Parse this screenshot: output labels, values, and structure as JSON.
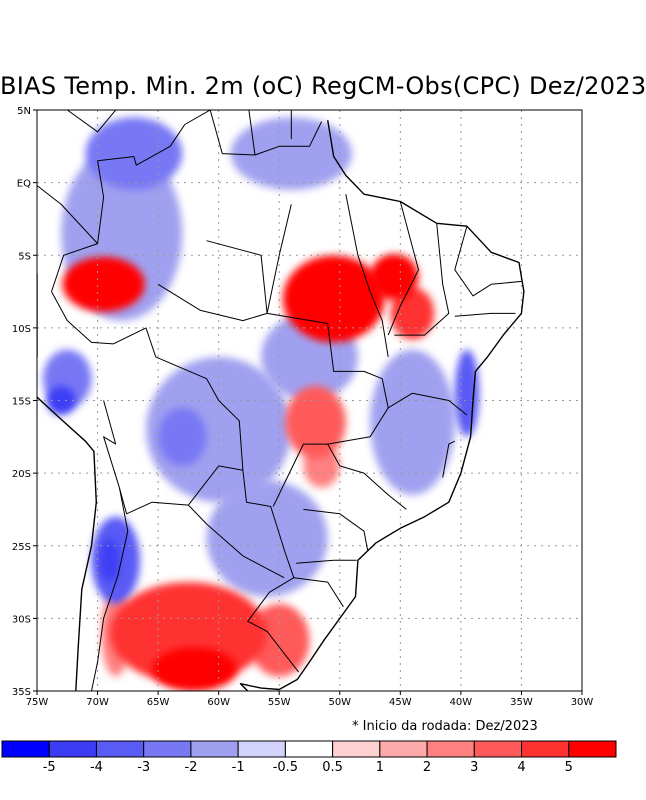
{
  "title": "BIAS Temp. Min. 2m (oC) RegCM-Obs(CPC) Dez/2023",
  "footnote": "* Inicio da rodada: Dez/2023",
  "map": {
    "lon_range": [
      -75,
      -30
    ],
    "lat_range": [
      -35,
      5
    ],
    "lon_ticks": [
      {
        "v": -75,
        "label": "75W"
      },
      {
        "v": -70,
        "label": "70W"
      },
      {
        "v": -65,
        "label": "65W"
      },
      {
        "v": -60,
        "label": "60W"
      },
      {
        "v": -55,
        "label": "55W"
      },
      {
        "v": -50,
        "label": "50W"
      },
      {
        "v": -45,
        "label": "45W"
      },
      {
        "v": -40,
        "label": "40W"
      },
      {
        "v": -35,
        "label": "35W"
      },
      {
        "v": -30,
        "label": "30W"
      }
    ],
    "lat_ticks": [
      {
        "v": 5,
        "label": "5N"
      },
      {
        "v": 0,
        "label": "EQ"
      },
      {
        "v": -5,
        "label": "5S"
      },
      {
        "v": -10,
        "label": "10S"
      },
      {
        "v": -15,
        "label": "15S"
      },
      {
        "v": -20,
        "label": "20S"
      },
      {
        "v": -25,
        "label": "25S"
      },
      {
        "v": -30,
        "label": "30S"
      },
      {
        "v": -35,
        "label": "35S"
      }
    ]
  },
  "colorbar": {
    "colors": [
      "#0000ff",
      "#3c3cf5",
      "#5a5af5",
      "#7878f5",
      "#a0a0f0",
      "#d2d2fa",
      "#ffffff",
      "#ffd2d2",
      "#ffaaaa",
      "#ff8080",
      "#ff5a5a",
      "#ff3232",
      "#ff0000"
    ],
    "labels": [
      "-5",
      "-4",
      "-3",
      "-2",
      "-1",
      "-0.5",
      "0.5",
      "1",
      "2",
      "3",
      "4",
      "5"
    ]
  },
  "chart_data": {
    "type": "heatmap",
    "title": "BIAS Temp. Min. 2m (oC) RegCM-Obs(CPC) Dez/2023",
    "variable": "BIAS Temp. Min. 2m (oC)",
    "xlim": [
      -75,
      -30
    ],
    "ylim": [
      -35,
      5
    ],
    "levels": [
      -5,
      -4,
      -3,
      -2,
      -1,
      -0.5,
      0.5,
      1,
      2,
      3,
      4,
      5
    ],
    "features": [
      {
        "lon": -69.5,
        "lat": -7.0,
        "rx": 3.4,
        "ry": 1.9,
        "value": 6
      },
      {
        "lon": -50.5,
        "lat": -8.0,
        "rx": 4.2,
        "ry": 3.0,
        "value": 6
      },
      {
        "lon": -45.5,
        "lat": -6.5,
        "rx": 2.0,
        "ry": 1.6,
        "value": 6
      },
      {
        "lon": -44.0,
        "lat": -9.0,
        "rx": 1.8,
        "ry": 1.8,
        "value": 4
      },
      {
        "lon": -52.0,
        "lat": -16.5,
        "rx": 2.5,
        "ry": 2.5,
        "value": 3
      },
      {
        "lon": -51.5,
        "lat": -19.5,
        "rx": 1.5,
        "ry": 1.5,
        "value": 2
      },
      {
        "lon": -62.5,
        "lat": -31.0,
        "rx": 6.5,
        "ry": 3.5,
        "value": 4
      },
      {
        "lon": -62.0,
        "lat": -33.5,
        "rx": 3.5,
        "ry": 1.5,
        "value": 5
      },
      {
        "lon": -55.0,
        "lat": -31.5,
        "rx": 2.5,
        "ry": 2.5,
        "value": 3
      },
      {
        "lon": -68.5,
        "lat": -31.0,
        "rx": 1.2,
        "ry": 3.0,
        "value": 2
      },
      {
        "lon": -68.0,
        "lat": -3.5,
        "rx": 5.0,
        "ry": 6.0,
        "value": -1.5
      },
      {
        "lon": -67.0,
        "lat": 2.0,
        "rx": 4.0,
        "ry": 2.5,
        "value": -2.5
      },
      {
        "lon": -54.0,
        "lat": 2.0,
        "rx": 5.0,
        "ry": 2.5,
        "value": -2
      },
      {
        "lon": -72.5,
        "lat": -13.5,
        "rx": 2.0,
        "ry": 2.0,
        "value": -2.5
      },
      {
        "lon": -73.0,
        "lat": -15.0,
        "rx": 1.2,
        "ry": 1.0,
        "value": -5
      },
      {
        "lon": -60.0,
        "lat": -17.0,
        "rx": 6.0,
        "ry": 5.0,
        "value": -1.5
      },
      {
        "lon": -63.0,
        "lat": -17.5,
        "rx": 2.0,
        "ry": 2.0,
        "value": -3
      },
      {
        "lon": -52.5,
        "lat": -12.0,
        "rx": 4.0,
        "ry": 3.0,
        "value": -1.5
      },
      {
        "lon": -44.0,
        "lat": -16.5,
        "rx": 3.5,
        "ry": 5.0,
        "value": -1.5
      },
      {
        "lon": -39.5,
        "lat": -14.5,
        "rx": 1.0,
        "ry": 3.0,
        "value": -3.5
      },
      {
        "lon": -56.0,
        "lat": -24.5,
        "rx": 5.0,
        "ry": 4.0,
        "value": -1.5
      },
      {
        "lon": -68.5,
        "lat": -26.0,
        "rx": 2.0,
        "ry": 3.0,
        "value": -3.5
      },
      {
        "lon": -69.0,
        "lat": -26.0,
        "rx": 0.8,
        "ry": 1.5,
        "value": -5
      }
    ]
  }
}
